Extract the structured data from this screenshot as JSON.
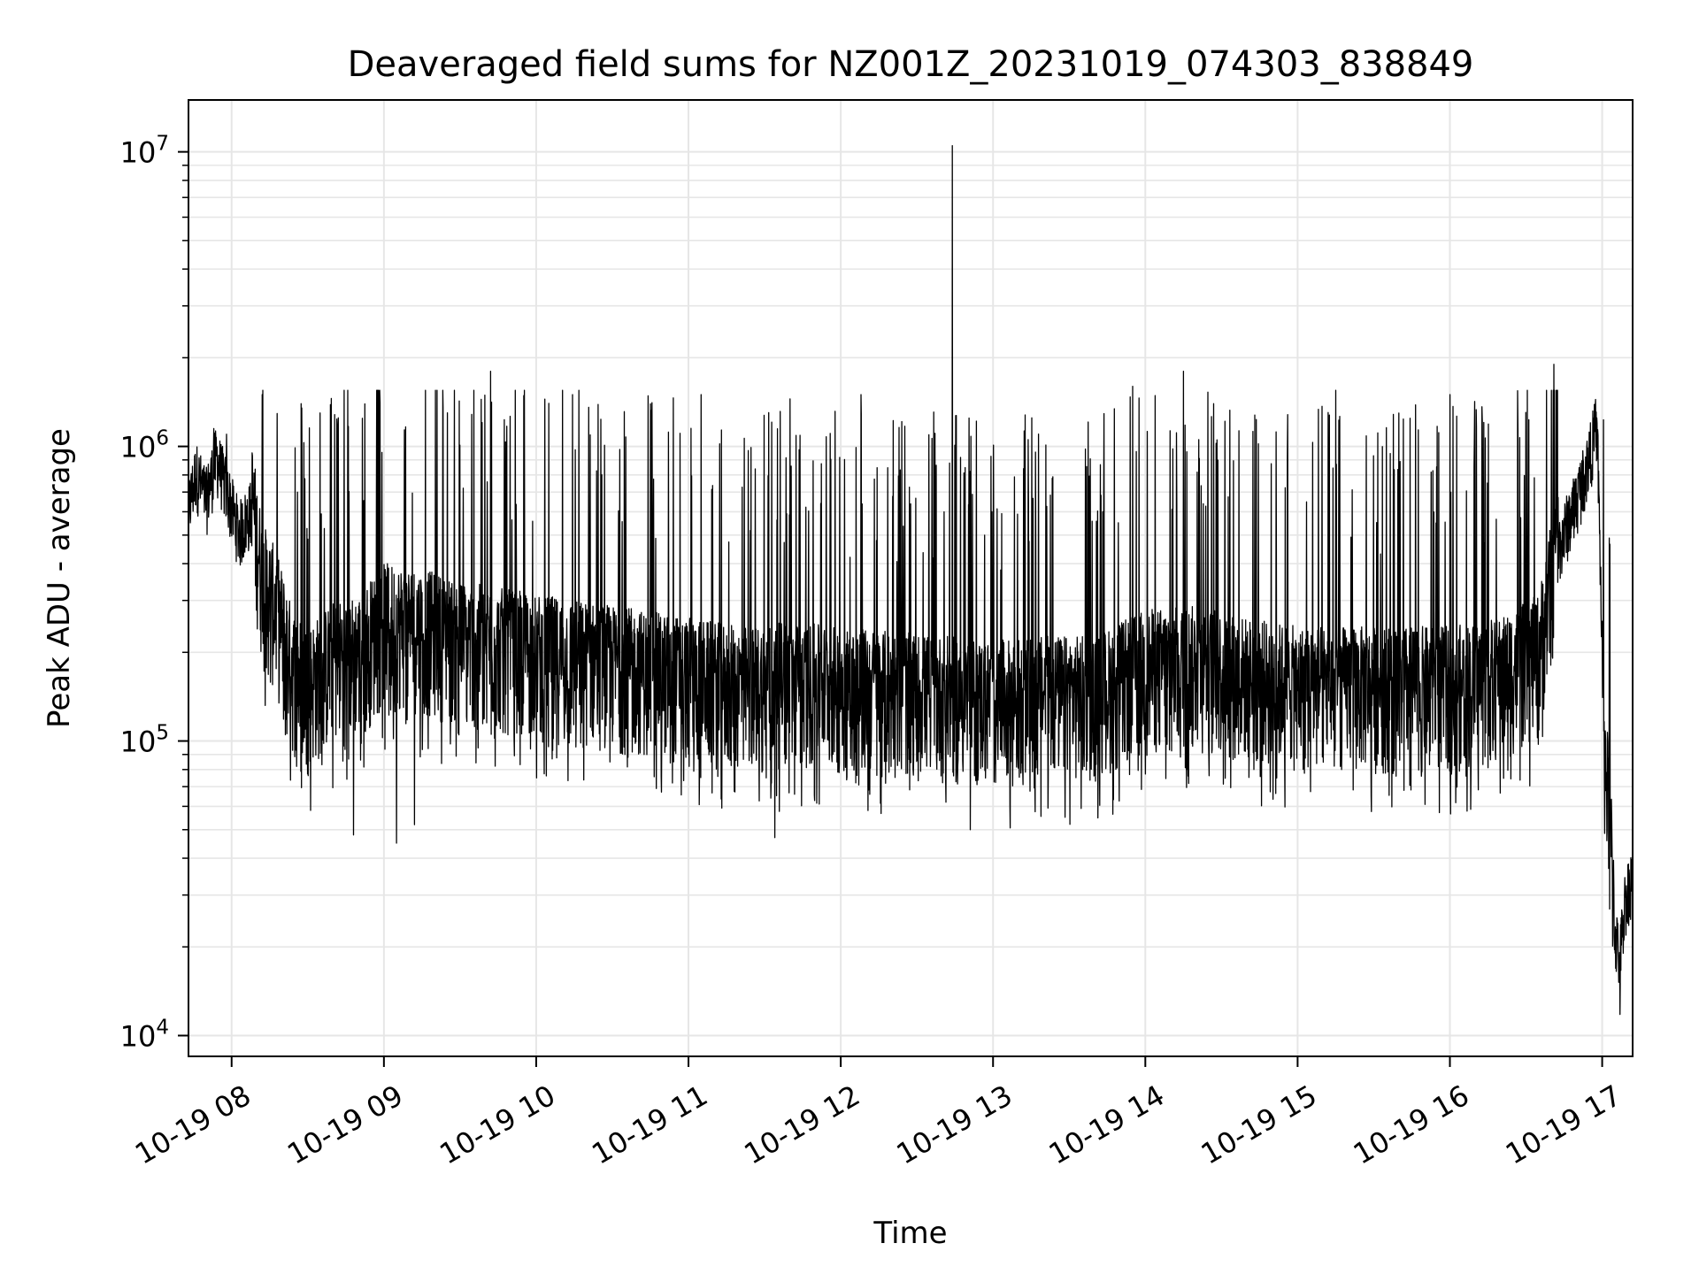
{
  "chart_data": {
    "type": "line",
    "title": "Deaveraged field sums for NZ001Z_20231019_074303_838849",
    "xlabel": "Time",
    "ylabel": "Peak ADU - average",
    "x_scale": "time",
    "y_scale": "log",
    "xlim": [
      "2023-10-19 07:43",
      "2023-10-19 17:12"
    ],
    "ylim": [
      8500,
      15000000
    ],
    "x_ticks": [
      {
        "t": "2023-10-19 08:00",
        "label": "10-19 08"
      },
      {
        "t": "2023-10-19 09:00",
        "label": "10-19 09"
      },
      {
        "t": "2023-10-19 10:00",
        "label": "10-19 10"
      },
      {
        "t": "2023-10-19 11:00",
        "label": "10-19 11"
      },
      {
        "t": "2023-10-19 12:00",
        "label": "10-19 12"
      },
      {
        "t": "2023-10-19 13:00",
        "label": "10-19 13"
      },
      {
        "t": "2023-10-19 14:00",
        "label": "10-19 14"
      },
      {
        "t": "2023-10-19 15:00",
        "label": "10-19 15"
      },
      {
        "t": "2023-10-19 16:00",
        "label": "10-19 16"
      },
      {
        "t": "2023-10-19 17:00",
        "label": "10-19 17"
      }
    ],
    "y_ticks": [
      {
        "value": 10000,
        "base": "10",
        "exp": "4"
      },
      {
        "value": 100000,
        "base": "10",
        "exp": "5"
      },
      {
        "value": 1000000,
        "base": "10",
        "exp": "6"
      },
      {
        "value": 10000000,
        "base": "10",
        "exp": "7"
      }
    ],
    "grid": true,
    "line_color": "#000000",
    "grid_color": "#e6e6e6",
    "series": [
      {
        "points": [
          [
            "2023-10-19 07:43",
            600000
          ],
          [
            "2023-10-19 07:46",
            800000
          ],
          [
            "2023-10-19 07:50",
            650000
          ],
          [
            "2023-10-19 07:54",
            900000
          ],
          [
            "2023-10-19 07:58",
            700000
          ],
          [
            "2023-10-19 08:03",
            500000
          ],
          [
            "2023-10-19 08:08",
            600000
          ],
          [
            "2023-10-19 08:12",
            320000
          ],
          [
            "2023-10-19 08:18",
            250000
          ],
          [
            "2023-10-19 08:24",
            160000
          ],
          [
            "2023-10-19 08:30",
            140000
          ],
          [
            "2023-10-19 08:40",
            170000
          ],
          [
            "2023-10-19 08:50",
            180000
          ],
          [
            "2023-10-19 09:00",
            230000
          ],
          [
            "2023-10-19 09:15",
            220000
          ],
          [
            "2023-10-19 09:30",
            200000
          ],
          [
            "2023-10-19 09:45",
            190000
          ],
          [
            "2023-10-19 10:00",
            180000
          ],
          [
            "2023-10-19 10:20",
            170000
          ],
          [
            "2023-10-19 10:40",
            160000
          ],
          [
            "2023-10-19 11:00",
            150000
          ],
          [
            "2023-10-19 11:20",
            140000
          ],
          [
            "2023-10-19 11:40",
            145000
          ],
          [
            "2023-10-19 12:00",
            140000
          ],
          [
            "2023-10-19 12:20",
            135000
          ],
          [
            "2023-10-19 12:40",
            130000
          ],
          [
            "2023-10-19 13:00",
            125000
          ],
          [
            "2023-10-19 13:20",
            130000
          ],
          [
            "2023-10-19 13:40",
            130000
          ],
          [
            "2023-10-19 14:00",
            160000
          ],
          [
            "2023-10-19 14:20",
            165000
          ],
          [
            "2023-10-19 14:40",
            150000
          ],
          [
            "2023-10-19 15:00",
            140000
          ],
          [
            "2023-10-19 15:20",
            140000
          ],
          [
            "2023-10-19 15:40",
            140000
          ],
          [
            "2023-10-19 16:00",
            140000
          ],
          [
            "2023-10-19 16:20",
            150000
          ],
          [
            "2023-10-19 16:35",
            180000
          ],
          [
            "2023-10-19 16:43",
            450000
          ],
          [
            "2023-10-19 16:50",
            650000
          ],
          [
            "2023-10-19 16:55",
            900000
          ],
          [
            "2023-10-19 16:58",
            1200000
          ],
          [
            "2023-10-19 17:00",
            200000
          ],
          [
            "2023-10-19 17:01",
            80000
          ],
          [
            "2023-10-19 17:03",
            50000
          ],
          [
            "2023-10-19 17:05",
            22000
          ],
          [
            "2023-10-19 17:07",
            18000
          ],
          [
            "2023-10-19 17:09",
            28000
          ],
          [
            "2023-10-19 17:12",
            35000
          ]
        ],
        "noise_low": 0.4,
        "noise_high": 5.0
      }
    ],
    "notable_spikes": [
      [
        "2023-10-19 07:53",
        1150000
      ],
      [
        "2023-10-19 07:58",
        1100000
      ],
      [
        "2023-10-19 08:12",
        1500000
      ],
      [
        "2023-10-19 08:42",
        1250000
      ],
      [
        "2023-10-19 09:25",
        1300000
      ],
      [
        "2023-10-19 09:42",
        1800000
      ],
      [
        "2023-10-19 10:05",
        1400000
      ],
      [
        "2023-10-19 11:05",
        1500000
      ],
      [
        "2023-10-19 11:40",
        1450000
      ],
      [
        "2023-10-19 12:08",
        1500000
      ],
      [
        "2023-10-19 12:44",
        10500000
      ],
      [
        "2023-10-19 13:55",
        1600000
      ],
      [
        "2023-10-19 14:15",
        1800000
      ],
      [
        "2023-10-19 15:15",
        1550000
      ],
      [
        "2023-10-19 16:00",
        1500000
      ],
      [
        "2023-10-19 16:41",
        1900000
      ],
      [
        "2023-10-19 16:58",
        1200000
      ]
    ],
    "notable_dips": [
      [
        "2023-10-19 08:48",
        48000
      ],
      [
        "2023-10-19 09:05",
        45000
      ],
      [
        "2023-10-19 09:12",
        52000
      ],
      [
        "2023-10-19 11:34",
        47000
      ],
      [
        "2023-10-19 12:51",
        50000
      ],
      [
        "2023-10-19 17:07",
        11800
      ]
    ]
  }
}
